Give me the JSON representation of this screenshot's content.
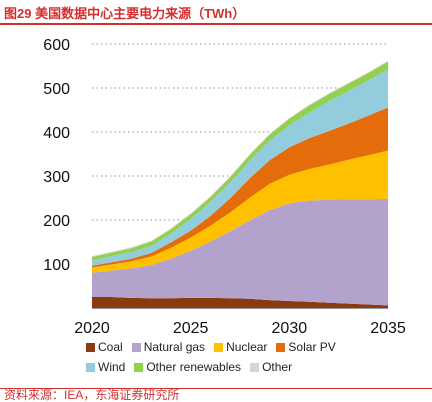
{
  "figure": {
    "title": "图29  美国数据中心主要电力来源（TWh）",
    "source": "资料来源：IEA，东海证券研究所"
  },
  "chart_data": {
    "type": "area",
    "stacked": true,
    "x": [
      2020,
      2021,
      2022,
      2023,
      2024,
      2025,
      2026,
      2027,
      2028,
      2029,
      2030,
      2031,
      2032,
      2033,
      2034,
      2035
    ],
    "xticks": [
      2020,
      2025,
      2030,
      2035
    ],
    "yticks": [
      100,
      200,
      300,
      400,
      500,
      600
    ],
    "ylim": [
      0,
      600
    ],
    "grid": "dotted-horizontal",
    "legend_position": "bottom",
    "series": [
      {
        "name": "Coal",
        "color": "#8b3a0f",
        "values": [
          25,
          25,
          23,
          22,
          22,
          23,
          23,
          22,
          21,
          18,
          16,
          14,
          12,
          10,
          8,
          6
        ]
      },
      {
        "name": "Natural gas",
        "color": "#b3a3cc",
        "values": [
          55,
          60,
          67,
          75,
          90,
          107,
          128,
          152,
          178,
          204,
          222,
          230,
          234,
          237,
          239,
          242
        ]
      },
      {
        "name": "Nuclear",
        "color": "#ffc000",
        "values": [
          12,
          14,
          16,
          20,
          25,
          30,
          36,
          43,
          52,
          60,
          65,
          72,
          80,
          90,
          100,
          110
        ]
      },
      {
        "name": "Solar PV",
        "color": "#e46c0a",
        "values": [
          4,
          5,
          6,
          8,
          12,
          16,
          22,
          32,
          44,
          54,
          62,
          70,
          76,
          82,
          90,
          98
        ]
      },
      {
        "name": "Wind",
        "color": "#93cddd",
        "values": [
          12,
          14,
          15,
          16,
          20,
          26,
          32,
          36,
          40,
          44,
          50,
          58,
          68,
          74,
          80,
          86
        ]
      },
      {
        "name": "Other renewables",
        "color": "#92d050",
        "values": [
          8,
          8,
          9,
          10,
          10,
          11,
          11,
          12,
          13,
          14,
          15,
          16,
          16,
          17,
          17,
          18
        ]
      },
      {
        "name": "Other",
        "color": "#d9d6c8",
        "values": [
          2,
          2,
          2,
          2,
          2,
          2,
          2,
          2,
          2,
          2,
          2,
          2,
          2,
          2,
          2,
          2
        ]
      }
    ]
  }
}
